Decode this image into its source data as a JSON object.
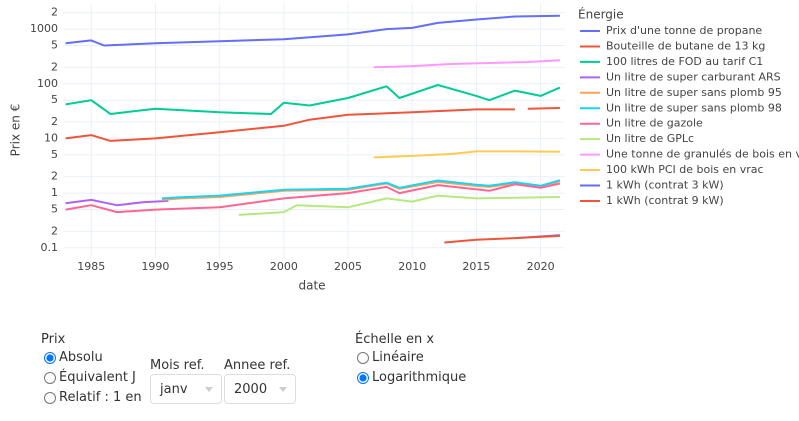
{
  "chart_data": {
    "type": "line",
    "log_y": true,
    "grid": true,
    "xlabel": "date",
    "ylabel": "Prix en €",
    "legend_title": "Énergie",
    "legend_position": "right",
    "xlim": [
      1982.8,
      2021.9
    ],
    "xticks": [
      1985,
      1990,
      1995,
      2000,
      2005,
      2010,
      2015,
      2020
    ],
    "ylim": [
      0.065,
      3000
    ],
    "yticks": [
      0.1,
      {
        "value": 0.2,
        "label": "2"
      },
      {
        "value": 0.5,
        "label": "5"
      },
      1,
      {
        "value": 2,
        "label": "2"
      },
      {
        "value": 5,
        "label": "5"
      },
      10,
      {
        "value": 20,
        "label": "2"
      },
      {
        "value": 50,
        "label": "5"
      },
      100,
      {
        "value": 200,
        "label": "2"
      },
      {
        "value": 500,
        "label": "5"
      },
      1000,
      {
        "value": 2000,
        "label": "2"
      }
    ],
    "series": [
      {
        "name": "Prix d'une tonne de propane",
        "color": "#636efa",
        "x": [
          1983,
          1985,
          1986,
          1990,
          1995,
          2000,
          2005,
          2008,
          2010,
          2012,
          2015,
          2018,
          2021.5
        ],
        "values": [
          550,
          620,
          500,
          550,
          600,
          650,
          800,
          1000,
          1050,
          1300,
          1500,
          1700,
          1750
        ]
      },
      {
        "name": "Bouteille de butane de 13 kg",
        "color": "#ef553b",
        "x": [
          1983,
          1985,
          1986.5,
          1990,
          1995,
          2000,
          2002,
          2005,
          2010,
          2015,
          2018,
          2018.5,
          2019,
          2021.5
        ],
        "values": [
          10,
          11.5,
          9,
          10,
          13,
          17,
          22,
          27,
          30,
          34,
          34,
          null,
          35,
          36
        ]
      },
      {
        "name": "100 litres de FOD au tarif C1",
        "color": "#00cc96",
        "x": [
          1983,
          1985,
          1986.5,
          1990,
          1995,
          1999,
          2000,
          2002,
          2005,
          2008,
          2009,
          2012,
          2015,
          2016,
          2018,
          2020,
          2021.5
        ],
        "values": [
          42,
          50,
          28,
          35,
          30,
          28,
          45,
          40,
          55,
          90,
          55,
          95,
          60,
          50,
          75,
          60,
          85
        ]
      },
      {
        "name": "Un litre de super carburant ARS",
        "color": "#ab63fa",
        "x": [
          1983,
          1985,
          1987,
          1989,
          1991
        ],
        "values": [
          0.65,
          0.75,
          0.6,
          0.68,
          0.72
        ]
      },
      {
        "name": "Un litre de super sans plomb 95",
        "color": "#FFA15A",
        "x": [
          1990.5,
          1992,
          1995,
          2000,
          2005,
          2008,
          2009,
          2012,
          2015,
          2016,
          2018,
          2020,
          2021.5
        ],
        "values": [
          0.75,
          0.8,
          0.85,
          1.1,
          1.15,
          1.5,
          1.2,
          1.6,
          1.35,
          1.3,
          1.5,
          1.3,
          1.65
        ]
      },
      {
        "name": "Un litre de super sans plomb 98",
        "color": "#19d3f3",
        "x": [
          1990.5,
          1992,
          1995,
          2000,
          2005,
          2008,
          2009,
          2012,
          2015,
          2016,
          2018,
          2020,
          2021.5
        ],
        "values": [
          0.8,
          0.84,
          0.9,
          1.15,
          1.2,
          1.55,
          1.25,
          1.7,
          1.42,
          1.36,
          1.58,
          1.36,
          1.72
        ]
      },
      {
        "name": "Un litre de gazole",
        "color": "#FF6692",
        "x": [
          1983,
          1985,
          1987,
          1990,
          1995,
          2000,
          2005,
          2008,
          2009,
          2012,
          2016,
          2018,
          2020,
          2021.5
        ],
        "values": [
          0.5,
          0.6,
          0.45,
          0.5,
          0.55,
          0.8,
          1.0,
          1.3,
          1.0,
          1.4,
          1.1,
          1.45,
          1.25,
          1.5
        ]
      },
      {
        "name": "Un litre de GPLc",
        "color": "#B6E880",
        "x": [
          1996.5,
          2000,
          2001,
          2005,
          2008,
          2010,
          2012,
          2015,
          2021.5
        ],
        "values": [
          0.4,
          0.45,
          0.6,
          0.55,
          0.8,
          0.7,
          0.9,
          0.8,
          0.85
        ]
      },
      {
        "name": "Une tonne de granulés de bois en vrac",
        "color": "#FF97FF",
        "x": [
          2007,
          2010,
          2013,
          2016,
          2019,
          2021.5
        ],
        "values": [
          200,
          210,
          230,
          240,
          250,
          270
        ]
      },
      {
        "name": "100 kWh PCI de bois en vrac",
        "color": "#FECB52",
        "x": [
          2007,
          2010,
          2013,
          2015,
          2018,
          2021.5
        ],
        "values": [
          4.5,
          4.8,
          5.2,
          5.8,
          5.8,
          5.7
        ]
      },
      {
        "name": "1 kWh (contrat 3 kW)",
        "color": "#636efa",
        "x": [
          2018,
          2021.5
        ],
        "values": [
          0.15,
          0.17
        ]
      },
      {
        "name": "1 kWh (contrat 9 kW)",
        "color": "#ef553b",
        "x": [
          2012.5,
          2015,
          2018,
          2021.5
        ],
        "values": [
          0.125,
          0.14,
          0.15,
          0.165
        ]
      }
    ]
  },
  "controls": {
    "price": {
      "label": "Prix",
      "options": [
        "Absolu",
        "Équivalent J",
        "Relatif : 1 en"
      ],
      "selected": 0
    },
    "month": {
      "label": "Mois ref.",
      "value": "janv"
    },
    "year": {
      "label": "Annee ref.",
      "value": "2000"
    },
    "scale": {
      "label": "Échelle en x",
      "options": [
        "Linéaire",
        "Logarithmique"
      ],
      "selected": 1
    }
  }
}
